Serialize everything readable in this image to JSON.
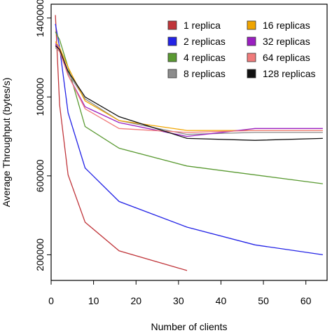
{
  "chart_data": {
    "type": "line",
    "xlabel": "Number of clients",
    "ylabel": "Average Throughput (bytes/s)",
    "xlim": [
      0,
      65
    ],
    "ylim": [
      70000,
      1470000
    ],
    "xticks": [
      0,
      10,
      20,
      30,
      40,
      50,
      60
    ],
    "yticks": [
      200000,
      600000,
      1000000,
      1400000
    ],
    "xtick_labels": [
      "0",
      "10",
      "20",
      "30",
      "40",
      "50",
      "60"
    ],
    "ytick_labels": [
      "200000",
      "600000",
      "1000000",
      "1400000"
    ],
    "grid": false,
    "legend_position": "top-right",
    "series": [
      {
        "name": "1 replica",
        "color": "#c0353a",
        "x": [
          1,
          2,
          4,
          8,
          16,
          32
        ],
        "y": [
          1415000,
          960000,
          605000,
          365000,
          220000,
          120000
        ]
      },
      {
        "name": "2 replicas",
        "color": "#2323e6",
        "x": [
          1,
          2,
          4,
          8,
          16,
          32,
          48,
          64
        ],
        "y": [
          1370000,
          1250000,
          920000,
          640000,
          470000,
          340000,
          250000,
          200000
        ]
      },
      {
        "name": "4 replicas",
        "color": "#5a9a32",
        "x": [
          1,
          2,
          4,
          8,
          16,
          32,
          64
        ],
        "y": [
          1330000,
          1290000,
          1150000,
          850000,
          740000,
          650000,
          560000
        ]
      },
      {
        "name": "8 replicas",
        "color": "#8c8c8c",
        "x": [
          1,
          2,
          4,
          8,
          16,
          32,
          48,
          64
        ],
        "y": [
          1250000,
          1230000,
          1120000,
          990000,
          880000,
          810000,
          820000,
          820000
        ]
      },
      {
        "name": "16 replicas",
        "color": "#f0a500",
        "x": [
          1,
          2,
          4,
          8,
          16,
          32,
          48,
          64
        ],
        "y": [
          1280000,
          1250000,
          1150000,
          980000,
          880000,
          830000,
          830000,
          830000
        ]
      },
      {
        "name": "32 replicas",
        "color": "#9a1fc0",
        "x": [
          1,
          2,
          4,
          8,
          16,
          32,
          48,
          64
        ],
        "y": [
          1270000,
          1240000,
          1110000,
          950000,
          870000,
          800000,
          840000,
          840000
        ]
      },
      {
        "name": "64 replicas",
        "color": "#f07b7b",
        "x": [
          1,
          2,
          4,
          8,
          16,
          32,
          48,
          64
        ],
        "y": [
          1260000,
          1230000,
          1110000,
          940000,
          840000,
          820000,
          830000,
          830000
        ]
      },
      {
        "name": "128 replicas",
        "color": "#111111",
        "x": [
          1,
          2,
          4,
          8,
          16,
          32,
          48,
          64
        ],
        "y": [
          1260000,
          1240000,
          1130000,
          1000000,
          900000,
          790000,
          780000,
          790000
        ]
      }
    ]
  }
}
